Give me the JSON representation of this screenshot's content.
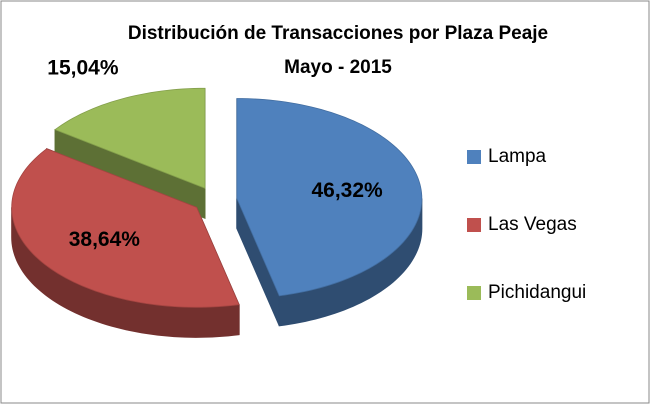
{
  "chart_data": {
    "type": "pie3d",
    "title": "Distribución de Transacciones por Plaza Peaje",
    "subtitle": "Mayo - 2015",
    "categories": [
      "Lampa",
      "Las Vegas",
      "Pichidangui"
    ],
    "values": [
      46.32,
      38.64,
      15.04
    ],
    "value_labels": [
      "46,32%",
      "38,64%",
      "15,04%"
    ],
    "colors": [
      "#4f81bd",
      "#c0504d",
      "#9bbb59"
    ],
    "legend": "right"
  }
}
